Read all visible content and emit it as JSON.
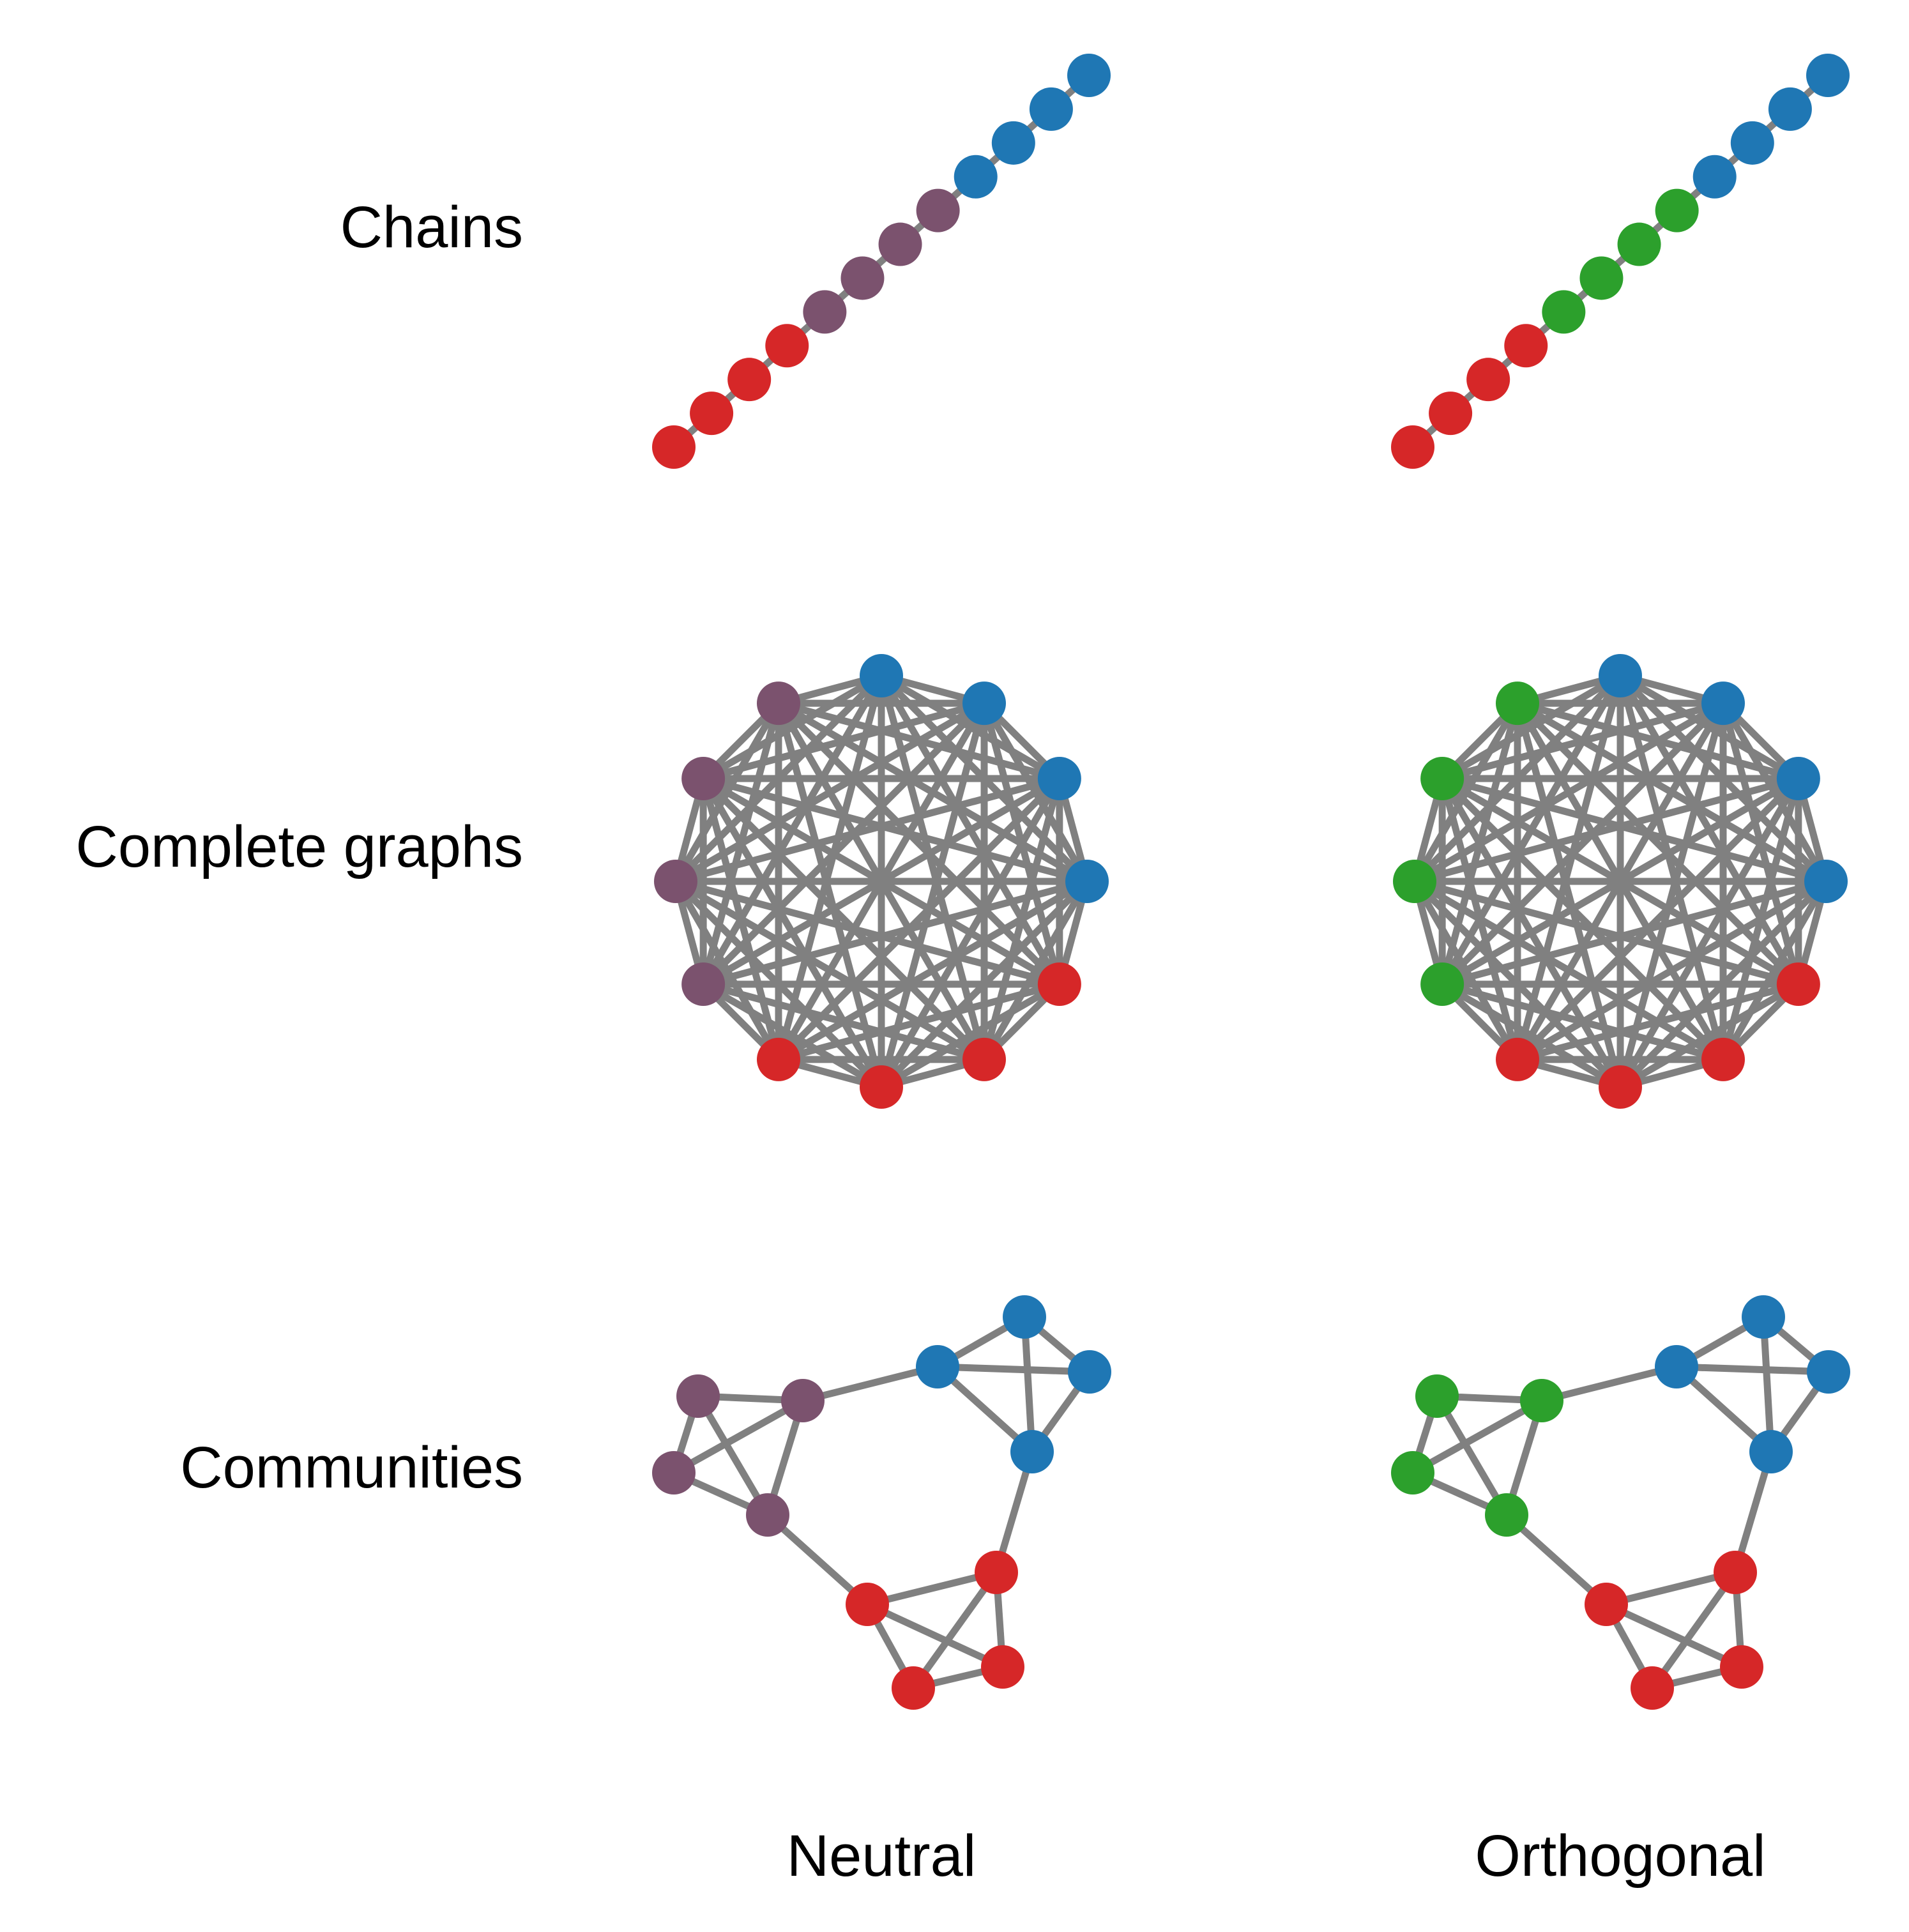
{
  "row_labels": {
    "chains": "Chains",
    "complete": "Complete graphs",
    "communities": "Communities"
  },
  "column_labels": {
    "neutral": "Neutral",
    "orthogonal": "Orthogonal"
  },
  "colors": {
    "edge": "#808080",
    "red": "#d62728",
    "blue": "#1f77b4",
    "purple": "#7b526e",
    "green": "#2ca02c"
  },
  "graphs": {
    "chain": {
      "node_count": 12,
      "edges": [
        [
          0,
          1
        ],
        [
          1,
          2
        ],
        [
          2,
          3
        ],
        [
          3,
          4
        ],
        [
          4,
          5
        ],
        [
          5,
          6
        ],
        [
          6,
          7
        ],
        [
          7,
          8
        ],
        [
          8,
          9
        ],
        [
          9,
          10
        ],
        [
          10,
          11
        ]
      ],
      "neutral_colors": [
        "red",
        "red",
        "red",
        "red",
        "purple",
        "purple",
        "purple",
        "purple",
        "blue",
        "blue",
        "blue",
        "blue"
      ],
      "orthogonal_colors": [
        "red",
        "red",
        "red",
        "red",
        "green",
        "green",
        "green",
        "green",
        "blue",
        "blue",
        "blue",
        "blue"
      ]
    },
    "complete": {
      "node_count": 12,
      "neutral_colors": [
        "blue",
        "blue",
        "blue",
        "blue",
        "purple",
        "purple",
        "purple",
        "purple",
        "red",
        "red",
        "red",
        "red"
      ],
      "orthogonal_colors": [
        "blue",
        "blue",
        "blue",
        "blue",
        "green",
        "green",
        "green",
        "green",
        "red",
        "red",
        "red",
        "red"
      ]
    },
    "communities": {
      "node_count": 12,
      "edges": [
        [
          0,
          1
        ],
        [
          0,
          2
        ],
        [
          0,
          3
        ],
        [
          1,
          2
        ],
        [
          1,
          3
        ],
        [
          2,
          3
        ],
        [
          1,
          4
        ],
        [
          4,
          5
        ],
        [
          4,
          6
        ],
        [
          4,
          7
        ],
        [
          5,
          6
        ],
        [
          5,
          7
        ],
        [
          6,
          7
        ],
        [
          7,
          8
        ],
        [
          8,
          9
        ],
        [
          8,
          10
        ],
        [
          8,
          11
        ],
        [
          9,
          10
        ],
        [
          9,
          11
        ],
        [
          10,
          11
        ],
        [
          11,
          3
        ]
      ],
      "neutral_colors": [
        "blue",
        "blue",
        "blue",
        "blue",
        "purple",
        "purple",
        "purple",
        "purple",
        "red",
        "red",
        "red",
        "red"
      ],
      "orthogonal_colors": [
        "blue",
        "blue",
        "blue",
        "blue",
        "green",
        "green",
        "green",
        "green",
        "red",
        "red",
        "red",
        "red"
      ]
    }
  }
}
